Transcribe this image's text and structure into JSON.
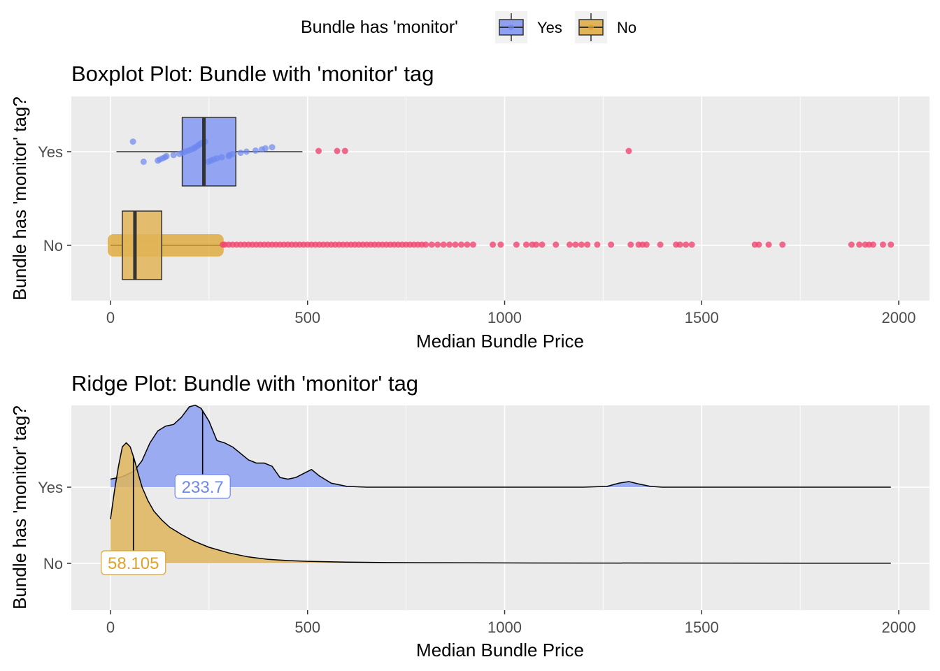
{
  "legend": {
    "title": "Bundle has 'monitor'",
    "items": [
      {
        "label": "Yes",
        "color": "#6d87ef"
      },
      {
        "label": "No",
        "color": "#dda32a"
      }
    ]
  },
  "colors": {
    "yes": "#6d87ef",
    "no": "#dda32a",
    "outlier": "#f0456f",
    "panel_bg": "#ebebeb",
    "grid": "#ffffff"
  },
  "chart_data": [
    {
      "type": "boxplot",
      "title": "Boxplot Plot: Bundle with 'monitor' tag",
      "xlabel": "Median Bundle Price",
      "ylabel": "Bundle has 'monitor' tag?",
      "xlim": [
        -100,
        2080
      ],
      "xticks": [
        0,
        500,
        1000,
        1500,
        2000
      ],
      "xtick_labels": [
        "0",
        "500",
        "1000",
        "1500",
        "2000"
      ],
      "categories": [
        "Yes",
        "No"
      ],
      "grid": true,
      "boxes": [
        {
          "name": "Yes",
          "min": 15,
          "q1": 182,
          "median": 237,
          "q3": 318,
          "max": 487,
          "outliers": [
            528,
            575,
            595,
            1315
          ],
          "points": [
            57,
            84,
            120,
            125,
            132,
            138,
            142,
            160,
            175,
            183,
            190,
            198,
            205,
            212,
            215,
            220,
            224,
            228,
            232,
            240,
            248,
            255,
            262,
            270,
            282,
            300,
            302,
            310,
            330,
            345,
            368,
            384,
            393,
            410
          ]
        },
        {
          "name": "No",
          "min": 0,
          "q1": 30,
          "median": 62,
          "q3": 130,
          "max": 280,
          "outliers": [
            285,
            290,
            300,
            310,
            320,
            330,
            340,
            350,
            360,
            370,
            380,
            390,
            400,
            410,
            420,
            430,
            440,
            450,
            460,
            470,
            480,
            490,
            500,
            510,
            520,
            530,
            540,
            550,
            560,
            570,
            580,
            590,
            600,
            610,
            620,
            630,
            640,
            650,
            660,
            670,
            680,
            690,
            700,
            710,
            720,
            730,
            740,
            750,
            760,
            770,
            780,
            790,
            800,
            815,
            830,
            845,
            860,
            875,
            890,
            905,
            920,
            970,
            990,
            1030,
            1055,
            1070,
            1080,
            1095,
            1130,
            1165,
            1180,
            1195,
            1210,
            1235,
            1270,
            1320,
            1340,
            1350,
            1360,
            1395,
            1435,
            1445,
            1460,
            1475,
            1635,
            1645,
            1670,
            1705,
            1880,
            1900,
            1915,
            1925,
            1935,
            1960,
            1980
          ],
          "points": []
        }
      ]
    },
    {
      "type": "ridge",
      "title": "Ridge Plot: Bundle with 'monitor' tag",
      "xlabel": "Median Bundle Price",
      "ylabel": "Bundle has 'monitor' tag?",
      "xlim": [
        -100,
        2080
      ],
      "xticks": [
        0,
        500,
        1000,
        1500,
        2000
      ],
      "xtick_labels": [
        "0",
        "500",
        "1000",
        "1500",
        "2000"
      ],
      "categories": [
        "Yes",
        "No"
      ],
      "grid": true,
      "series": [
        {
          "name": "Yes",
          "median": 233.7,
          "median_label": "233.7",
          "x": [
            0,
            30,
            60,
            80,
            100,
            120,
            140,
            160,
            180,
            200,
            215,
            230,
            250,
            270,
            290,
            310,
            330,
            350,
            370,
            390,
            410,
            430,
            450,
            470,
            490,
            510,
            530,
            560,
            600,
            650,
            700,
            1200,
            1260,
            1290,
            1315,
            1340,
            1370,
            1400,
            1980
          ],
          "y": [
            0.1,
            0.13,
            0.2,
            0.33,
            0.55,
            0.7,
            0.76,
            0.78,
            0.87,
            1.0,
            1.02,
            0.98,
            0.82,
            0.58,
            0.55,
            0.5,
            0.42,
            0.34,
            0.3,
            0.3,
            0.26,
            0.12,
            0.1,
            0.12,
            0.17,
            0.22,
            0.14,
            0.05,
            0.01,
            0.0,
            0.0,
            0.0,
            0.01,
            0.05,
            0.07,
            0.04,
            0.01,
            0.0,
            0.0
          ]
        },
        {
          "name": "No",
          "median": 58.105,
          "median_label": "58.105",
          "x": [
            0,
            10,
            20,
            30,
            40,
            50,
            60,
            70,
            80,
            95,
            110,
            130,
            150,
            180,
            210,
            250,
            300,
            350,
            400,
            450,
            500,
            600,
            700,
            800,
            1000,
            1500,
            1980
          ],
          "y": [
            0.55,
            0.9,
            1.2,
            1.45,
            1.5,
            1.45,
            1.3,
            1.12,
            0.95,
            0.78,
            0.65,
            0.54,
            0.45,
            0.36,
            0.28,
            0.2,
            0.13,
            0.08,
            0.05,
            0.035,
            0.025,
            0.015,
            0.01,
            0.008,
            0.005,
            0.003,
            0.002
          ]
        }
      ]
    }
  ]
}
